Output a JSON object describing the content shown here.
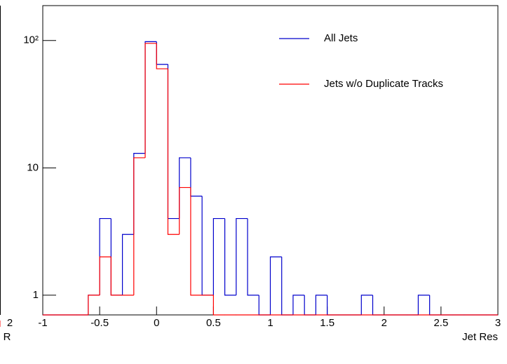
{
  "chart_data": [
    {
      "type": "fragment",
      "x_label": "R",
      "xticks": [
        2
      ],
      "color": "#ff0000"
    },
    {
      "type": "histogram",
      "x_label": "Jet Res",
      "bins": [
        -1,
        -0.9,
        -0.8,
        -0.7,
        -0.6,
        -0.5,
        -0.4,
        -0.3,
        -0.2,
        -0.1,
        0,
        0.1,
        0.2,
        0.3,
        0.4,
        0.5,
        0.6,
        0.7,
        0.8,
        0.9,
        1,
        1.1,
        1.2,
        1.3,
        1.4,
        1.5,
        1.6,
        1.7,
        1.8,
        1.9,
        2,
        2.1,
        2.2,
        2.3,
        2.4,
        2.5,
        2.6,
        2.7,
        2.8,
        2.9,
        3
      ],
      "series": [
        {
          "name": "All Jets",
          "color": "#0000cc",
          "values": [
            0,
            0,
            0,
            0,
            1,
            4,
            1,
            3,
            13,
            98,
            65,
            4,
            12,
            6,
            1,
            4,
            1,
            4,
            1,
            0,
            2,
            0,
            1,
            0,
            1,
            0,
            0,
            0,
            1,
            0,
            0,
            0,
            0,
            1,
            0,
            0,
            0,
            0,
            0,
            0
          ]
        },
        {
          "name": "Jets w/o Duplicate Tracks",
          "color": "#ff0000",
          "values": [
            0,
            0,
            0,
            0,
            1,
            2,
            1,
            1,
            12,
            95,
            60,
            3,
            7,
            1,
            1,
            0,
            0,
            0,
            0,
            0,
            0,
            0,
            0,
            0,
            0,
            0,
            0,
            0,
            0,
            0,
            0,
            0,
            0,
            0,
            0,
            0,
            0,
            0,
            0,
            0
          ]
        }
      ],
      "xlim": [
        -1,
        3
      ],
      "xticks": [
        -1,
        -0.5,
        0,
        0.5,
        1,
        1.5,
        2,
        2.5,
        3
      ],
      "ylim": [
        0.7,
        188
      ],
      "log_y": true,
      "yticks": [
        1,
        10,
        {
          "value": 100,
          "label": "10²"
        }
      ],
      "legend": "top-right"
    }
  ]
}
